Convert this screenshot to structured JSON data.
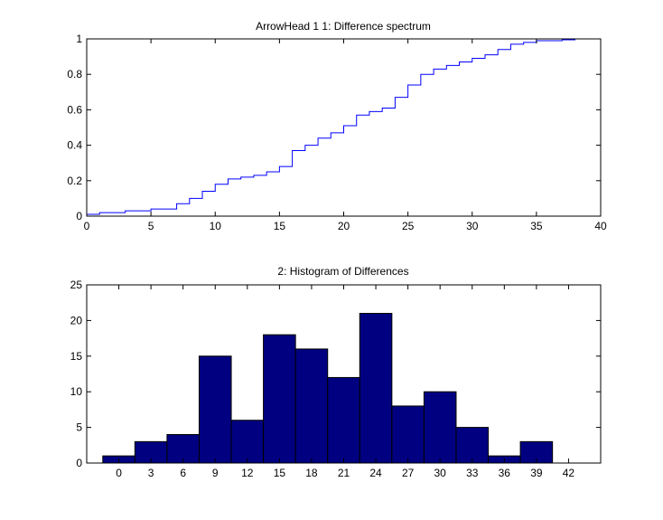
{
  "chart_data": [
    {
      "type": "line",
      "title": "ArrowHead 1  1: Difference spectrum",
      "xlabel": "",
      "ylabel": "",
      "xlim": [
        0,
        40
      ],
      "ylim": [
        0,
        1
      ],
      "xticks": [
        0,
        5,
        10,
        15,
        20,
        25,
        30,
        35,
        40
      ],
      "yticks": [
        0,
        0.2,
        0.4,
        0.6,
        0.8,
        1
      ],
      "ytick_labels": [
        "0",
        "0.2",
        "0.4",
        "0.6",
        "0.8",
        "1"
      ],
      "grid": false,
      "color": "#0000ff",
      "series": [
        {
          "x": [
            0,
            1,
            3,
            5,
            7,
            8,
            9,
            10,
            11,
            12,
            13,
            14,
            15,
            16,
            17,
            18,
            19,
            20,
            21,
            22,
            23,
            24,
            25,
            26,
            27,
            28,
            29,
            30,
            31,
            32,
            33,
            34,
            35,
            36,
            37,
            38,
            39
          ],
          "y": [
            0.01,
            0.02,
            0.03,
            0.04,
            0.07,
            0.1,
            0.14,
            0.18,
            0.21,
            0.22,
            0.23,
            0.25,
            0.28,
            0.37,
            0.4,
            0.44,
            0.47,
            0.51,
            0.57,
            0.59,
            0.61,
            0.67,
            0.74,
            0.8,
            0.83,
            0.85,
            0.87,
            0.89,
            0.91,
            0.94,
            0.97,
            0.98,
            0.99,
            0.99,
            0.995,
            1.0,
            1.0
          ]
        }
      ]
    },
    {
      "type": "bar",
      "title": "2: Histogram of Differences",
      "xlabel": "",
      "ylabel": "",
      "xlim": [
        -3,
        45
      ],
      "ylim": [
        0,
        25
      ],
      "xticks": [
        0,
        3,
        6,
        9,
        12,
        15,
        18,
        21,
        24,
        27,
        30,
        33,
        36,
        39,
        42
      ],
      "yticks": [
        0,
        5,
        10,
        15,
        20,
        25
      ],
      "grid": false,
      "color": "#000080",
      "bar_width": 3,
      "bins": [
        0,
        3,
        6,
        9,
        12,
        15,
        18,
        21,
        24,
        27,
        30,
        33,
        36,
        39
      ],
      "values": [
        1,
        3,
        4,
        15,
        6,
        18,
        16,
        12,
        21,
        8,
        10,
        5,
        1,
        3
      ]
    }
  ]
}
